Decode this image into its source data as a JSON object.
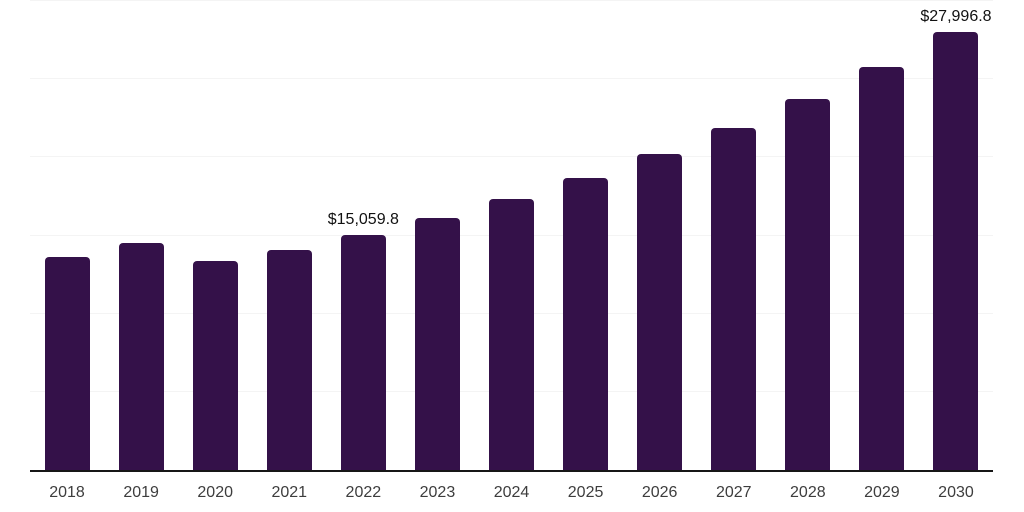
{
  "page": {
    "background": "#ffffff"
  },
  "chart_data": {
    "type": "bar",
    "title": "",
    "xlabel": "",
    "ylabel": "",
    "categories": [
      "2018",
      "2019",
      "2020",
      "2021",
      "2022",
      "2023",
      "2024",
      "2025",
      "2026",
      "2027",
      "2028",
      "2029",
      "2030"
    ],
    "values": [
      13600,
      14500,
      13380,
      14050,
      15059.8,
      16150,
      17360,
      18700,
      20240,
      21890,
      23720,
      25810,
      27996.8
    ],
    "data_labels": [
      {
        "index": 4,
        "text": "$15,059.8"
      },
      {
        "index": 12,
        "text": "$27,996.8"
      }
    ],
    "ylim": [
      0,
      30000
    ],
    "gridline_step": 5000,
    "grid": true,
    "legend": "none",
    "y_tick_labels_visible": false,
    "colors": {
      "bar": "#341149",
      "grid": "#f4f4f4",
      "axis": "#161616",
      "tick_label": "#3d3d3d",
      "data_label": "#111111"
    }
  }
}
